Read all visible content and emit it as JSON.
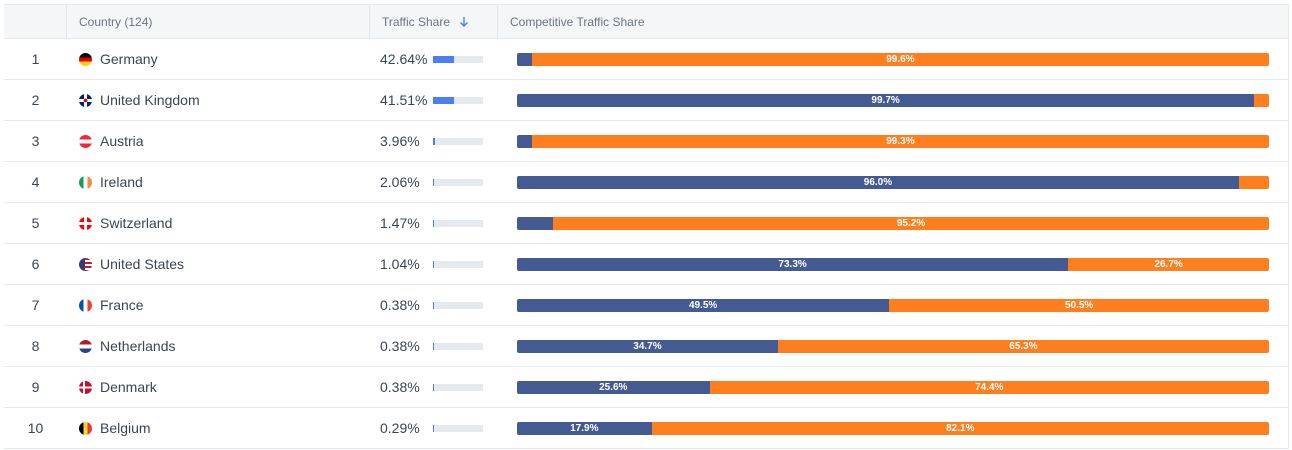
{
  "header": {
    "index": "",
    "country": "Country (124)",
    "traffic": "Traffic Share",
    "competitive": "Competitive Traffic Share",
    "sort_icon": "arrow-down-icon"
  },
  "colors": {
    "primary": "#435a93",
    "competitor": "#ff7f1e",
    "traffic_fill": "#4a80f5"
  },
  "rows": [
    {
      "rank": "1",
      "country": "Germany",
      "flag": "de",
      "traffic": "42.64%",
      "traffic_value": 42.64,
      "primary": 0.4,
      "competitor": 99.6,
      "primary_label": "",
      "competitor_label": "99.6%"
    },
    {
      "rank": "2",
      "country": "United Kingdom",
      "flag": "gb",
      "traffic": "41.51%",
      "traffic_value": 41.51,
      "primary": 99.7,
      "competitor": 0.3,
      "primary_label": "99.7%",
      "competitor_label": ""
    },
    {
      "rank": "3",
      "country": "Austria",
      "flag": "at",
      "traffic": "3.96%",
      "traffic_value": 3.96,
      "primary": 0.7,
      "competitor": 99.3,
      "primary_label": "",
      "competitor_label": "99.3%"
    },
    {
      "rank": "4",
      "country": "Ireland",
      "flag": "ie",
      "traffic": "2.06%",
      "traffic_value": 2.06,
      "primary": 96.0,
      "competitor": 4.0,
      "primary_label": "96.0%",
      "competitor_label": ""
    },
    {
      "rank": "5",
      "country": "Switzerland",
      "flag": "ch",
      "traffic": "1.47%",
      "traffic_value": 1.47,
      "primary": 4.8,
      "competitor": 95.2,
      "primary_label": "",
      "competitor_label": "95.2%"
    },
    {
      "rank": "6",
      "country": "United States",
      "flag": "us",
      "traffic": "1.04%",
      "traffic_value": 1.04,
      "primary": 73.3,
      "competitor": 26.7,
      "primary_label": "73.3%",
      "competitor_label": "26.7%"
    },
    {
      "rank": "7",
      "country": "France",
      "flag": "fr",
      "traffic": "0.38%",
      "traffic_value": 0.38,
      "primary": 49.5,
      "competitor": 50.5,
      "primary_label": "49.5%",
      "competitor_label": "50.5%"
    },
    {
      "rank": "8",
      "country": "Netherlands",
      "flag": "nl",
      "traffic": "0.38%",
      "traffic_value": 0.38,
      "primary": 34.7,
      "competitor": 65.3,
      "primary_label": "34.7%",
      "competitor_label": "65.3%"
    },
    {
      "rank": "9",
      "country": "Denmark",
      "flag": "dk",
      "traffic": "0.38%",
      "traffic_value": 0.38,
      "primary": 25.6,
      "competitor": 74.4,
      "primary_label": "25.6%",
      "competitor_label": "74.4%"
    },
    {
      "rank": "10",
      "country": "Belgium",
      "flag": "be",
      "traffic": "0.29%",
      "traffic_value": 0.29,
      "primary": 17.9,
      "competitor": 82.1,
      "primary_label": "17.9%",
      "competitor_label": "82.1%"
    }
  ]
}
